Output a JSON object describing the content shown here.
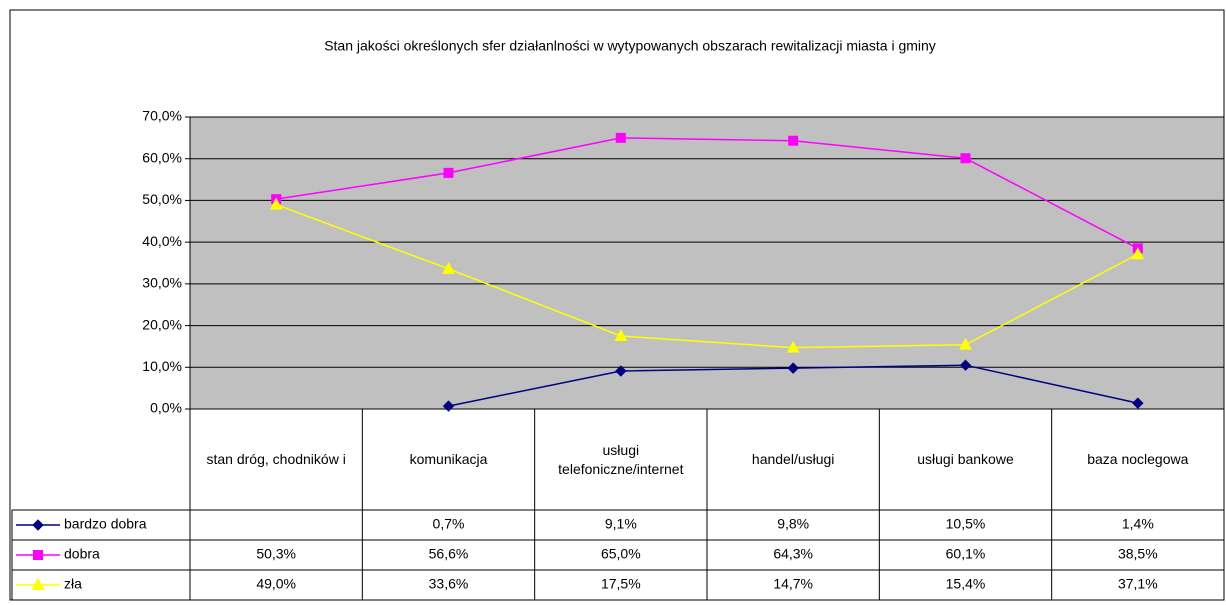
{
  "chart_data": {
    "type": "line",
    "title": "Stan jakości określonych sfer działanlności w wytypowanych obszarach rewitalizacji miasta i gminy",
    "categories": [
      "stan dróg, chodników i",
      "komunikacja",
      "usługi telefoniczne/internet",
      "handel/usługi",
      "usługi bankowe",
      "baza noclegowa"
    ],
    "series": [
      {
        "name": "bardzo dobra",
        "color": "#000080",
        "marker": "diamond",
        "values": [
          null,
          0.7,
          9.1,
          9.8,
          10.5,
          1.4
        ],
        "value_labels": [
          null,
          "0,7%",
          "9,1%",
          "9,8%",
          "10,5%",
          "1,4%"
        ]
      },
      {
        "name": "dobra",
        "color": "#ff00ff",
        "marker": "square",
        "values": [
          50.3,
          56.6,
          65.0,
          64.3,
          60.1,
          38.5
        ],
        "value_labels": [
          "50,3%",
          "56,6%",
          "65,0%",
          "64,3%",
          "60,1%",
          "38,5%"
        ]
      },
      {
        "name": "zła",
        "color": "#ffff00",
        "marker": "triangle",
        "values": [
          49.0,
          33.6,
          17.5,
          14.7,
          15.4,
          37.1
        ],
        "value_labels": [
          "49,0%",
          "33,6%",
          "17,5%",
          "14,7%",
          "15,4%",
          "37,1%"
        ]
      }
    ],
    "ylim": [
      0,
      70
    ],
    "yticks": [
      {
        "value": 0,
        "label": "0,0%"
      },
      {
        "value": 10,
        "label": "10,0%"
      },
      {
        "value": 20,
        "label": "20,0%"
      },
      {
        "value": 30,
        "label": "30,0%"
      },
      {
        "value": 40,
        "label": "40,0%"
      },
      {
        "value": 50,
        "label": "50,0%"
      },
      {
        "value": 60,
        "label": "60,0%"
      },
      {
        "value": 70,
        "label": "70,0%"
      }
    ],
    "grid": true,
    "plot_background": "#c0c0c0"
  }
}
